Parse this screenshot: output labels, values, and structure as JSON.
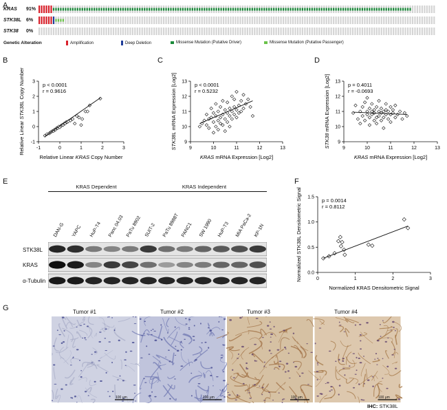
{
  "panels": {
    "A": "A",
    "B": "B",
    "C": "C",
    "D": "D",
    "E": "E",
    "F": "F",
    "G": "G"
  },
  "panel_a": {
    "genes": [
      {
        "name": "KRAS",
        "pct": "91%",
        "amp": 6,
        "del": 0,
        "driver": 150,
        "passenger": 0
      },
      {
        "name": "STK38L",
        "pct": "6%",
        "amp": 6,
        "del": 1,
        "driver": 0,
        "passenger": 4
      },
      {
        "name": "STK38",
        "pct": "0%",
        "amp": 0,
        "del": 0,
        "driver": 0,
        "passenger": 0
      }
    ],
    "legend_title": "Genetic Alteration",
    "legend": [
      {
        "label": "Amplification",
        "color": "#d9212b"
      },
      {
        "label": "Deep Deletion",
        "color": "#1f3d99"
      },
      {
        "label": "Missense Mutation (Putative Driver)",
        "color": "#1a8a3a"
      },
      {
        "label": "Missense Mutation (Putative Passenger)",
        "color": "#6ac24a"
      }
    ],
    "colors": {
      "unaltered": "#d4d4d4"
    }
  },
  "chart_data": [
    {
      "panel": "B",
      "type": "scatter",
      "ylabel_1": "Relative Linear ",
      "ylabel_italic": "STK38L",
      "ylabel_2": " Copy Number",
      "xlabel_1": "Relative Linear ",
      "xlabel_italic": "KRAS",
      "xlabel_2": " Copy Number",
      "xlim": [
        -1,
        3
      ],
      "ylim": [
        -1,
        3
      ],
      "xticks": [
        "-1",
        "0",
        "1",
        "2",
        "3"
      ],
      "yticks": [
        "-1",
        "0",
        "1",
        "2",
        "3"
      ],
      "stats": [
        "p < 0.0001",
        "r = 0.9616"
      ],
      "points": [
        [
          -0.7,
          -0.6
        ],
        [
          -0.6,
          -0.5
        ],
        [
          -0.5,
          -0.45
        ],
        [
          -0.45,
          -0.4
        ],
        [
          -0.4,
          -0.35
        ],
        [
          -0.35,
          -0.3
        ],
        [
          -0.3,
          -0.3
        ],
        [
          -0.25,
          -0.2
        ],
        [
          -0.2,
          -0.2
        ],
        [
          -0.15,
          -0.1
        ],
        [
          -0.1,
          -0.1
        ],
        [
          -0.05,
          0.0
        ],
        [
          0.0,
          -0.05
        ],
        [
          0.05,
          0.05
        ],
        [
          0.1,
          0.1
        ],
        [
          0.15,
          0.1
        ],
        [
          0.2,
          0.2
        ],
        [
          0.25,
          0.2
        ],
        [
          0.3,
          0.3
        ],
        [
          0.35,
          0.3
        ],
        [
          0.4,
          0.35
        ],
        [
          0.5,
          0.4
        ],
        [
          0.6,
          0.5
        ],
        [
          0.7,
          0.2
        ],
        [
          0.8,
          0.7
        ],
        [
          0.9,
          0.6
        ],
        [
          1.0,
          0.1
        ],
        [
          1.05,
          0.5
        ],
        [
          1.2,
          1.0
        ],
        [
          1.3,
          1.0
        ],
        [
          1.4,
          1.4
        ],
        [
          1.9,
          1.85
        ]
      ],
      "fit": [
        [
          -0.7,
          -0.65
        ],
        [
          1.9,
          1.9
        ]
      ]
    },
    {
      "panel": "C",
      "type": "scatter",
      "ylabel_italic": "STK38L",
      "ylabel_2": " mRNA Expression [Log2]",
      "xlabel_italic": "KRAS",
      "xlabel_2": " mRNA Expression [Log2]",
      "xlim": [
        9,
        13
      ],
      "ylim": [
        9,
        13
      ],
      "xticks": [
        "9",
        "10",
        "11",
        "12",
        "13"
      ],
      "yticks": [
        "9",
        "10",
        "11",
        "12",
        "13"
      ],
      "stats": [
        "p < 0.0001",
        "r = 0.5232"
      ],
      "points": [
        [
          9.4,
          10.0
        ],
        [
          9.5,
          10.2
        ],
        [
          9.6,
          10.4
        ],
        [
          9.7,
          10.1
        ],
        [
          9.7,
          10.8
        ],
        [
          9.8,
          10.5
        ],
        [
          9.8,
          9.9
        ],
        [
          9.9,
          10.6
        ],
        [
          9.9,
          11.2
        ],
        [
          10.0,
          10.3
        ],
        [
          10.0,
          10.9
        ],
        [
          10.0,
          9.6
        ],
        [
          10.1,
          10.7
        ],
        [
          10.1,
          11.5
        ],
        [
          10.1,
          10.0
        ],
        [
          10.2,
          10.4
        ],
        [
          10.2,
          11.0
        ],
        [
          10.2,
          9.8
        ],
        [
          10.3,
          10.6
        ],
        [
          10.3,
          11.3
        ],
        [
          10.3,
          10.2
        ],
        [
          10.4,
          10.8
        ],
        [
          10.4,
          10.1
        ],
        [
          10.4,
          11.7
        ],
        [
          10.5,
          10.5
        ],
        [
          10.5,
          11.1
        ],
        [
          10.5,
          9.7
        ],
        [
          10.6,
          10.9
        ],
        [
          10.6,
          10.3
        ],
        [
          10.6,
          11.6
        ],
        [
          10.7,
          10.7
        ],
        [
          10.7,
          11.2
        ],
        [
          10.7,
          10.0
        ],
        [
          10.8,
          11.0
        ],
        [
          10.8,
          10.5
        ],
        [
          10.8,
          12.0
        ],
        [
          10.9,
          11.3
        ],
        [
          10.9,
          10.8
        ],
        [
          10.9,
          11.8
        ],
        [
          11.0,
          11.1
        ],
        [
          11.0,
          10.6
        ],
        [
          11.0,
          12.3
        ],
        [
          11.1,
          11.4
        ],
        [
          11.1,
          10.9
        ],
        [
          11.2,
          11.7
        ],
        [
          11.2,
          11.0
        ],
        [
          11.3,
          12.1
        ],
        [
          11.3,
          11.2
        ],
        [
          11.4,
          11.5
        ],
        [
          11.5,
          11.8
        ],
        [
          11.6,
          11.3
        ],
        [
          11.7,
          10.7
        ]
      ],
      "fit": [
        [
          9.4,
          10.2
        ],
        [
          11.7,
          11.7
        ]
      ]
    },
    {
      "panel": "D",
      "type": "scatter",
      "ylabel_italic": "STK38",
      "ylabel_2": " mRNA Expression [Log2]",
      "xlabel_italic": "KRAS",
      "xlabel_2": " mRNA Expression [Log2]",
      "xlim": [
        9,
        13
      ],
      "ylim": [
        9,
        13
      ],
      "xticks": [
        "9",
        "10",
        "11",
        "12",
        "13"
      ],
      "yticks": [
        "9",
        "10",
        "11",
        "12",
        "13"
      ],
      "stats": [
        "p = 0.4011",
        "r = -0.0693"
      ],
      "points": [
        [
          9.4,
          10.9
        ],
        [
          9.5,
          11.4
        ],
        [
          9.6,
          10.5
        ],
        [
          9.7,
          11.0
        ],
        [
          9.7,
          10.2
        ],
        [
          9.8,
          11.3
        ],
        [
          9.8,
          10.7
        ],
        [
          9.9,
          11.6
        ],
        [
          9.9,
          10.4
        ],
        [
          10.0,
          11.0
        ],
        [
          10.0,
          10.8
        ],
        [
          10.0,
          11.9
        ],
        [
          10.1,
          10.6
        ],
        [
          10.1,
          11.2
        ],
        [
          10.1,
          10.1
        ],
        [
          10.2,
          11.0
        ],
        [
          10.2,
          10.8
        ],
        [
          10.2,
          11.5
        ],
        [
          10.3,
          10.4
        ],
        [
          10.3,
          11.1
        ],
        [
          10.3,
          10.9
        ],
        [
          10.4,
          11.3
        ],
        [
          10.4,
          10.6
        ],
        [
          10.4,
          10.2
        ],
        [
          10.5,
          11.0
        ],
        [
          10.5,
          10.7
        ],
        [
          10.5,
          11.7
        ],
        [
          10.6,
          10.9
        ],
        [
          10.6,
          10.4
        ],
        [
          10.6,
          11.2
        ],
        [
          10.7,
          11.0
        ],
        [
          10.7,
          10.6
        ],
        [
          10.7,
          9.9
        ],
        [
          10.8,
          11.1
        ],
        [
          10.8,
          10.8
        ],
        [
          10.8,
          11.5
        ],
        [
          10.9,
          10.5
        ],
        [
          10.9,
          11.0
        ],
        [
          11.0,
          10.8
        ],
        [
          11.0,
          11.3
        ],
        [
          11.0,
          10.3
        ],
        [
          11.1,
          10.9
        ],
        [
          11.1,
          11.1
        ],
        [
          11.2,
          10.6
        ],
        [
          11.2,
          11.4
        ],
        [
          11.3,
          10.8
        ],
        [
          11.4,
          11.0
        ],
        [
          11.5,
          10.5
        ],
        [
          11.6,
          10.9
        ],
        [
          11.7,
          10.7
        ]
      ],
      "fit": [
        [
          9.4,
          10.95
        ],
        [
          11.7,
          10.8
        ]
      ]
    },
    {
      "panel": "F",
      "type": "scatter",
      "ylabel": "Normalized STK38L Densitometric Signal",
      "xlabel": "Normalized KRAS Densitometric Signal",
      "xlim": [
        0,
        3
      ],
      "ylim": [
        0,
        1.5
      ],
      "xticks": [
        "0",
        "1",
        "2",
        "3"
      ],
      "yticks": [
        "0.0",
        "0.5",
        "1.0",
        "1.5"
      ],
      "stats": [
        "p = 0.0014",
        "r = 0.8112"
      ],
      "points": [
        [
          0.15,
          0.28
        ],
        [
          0.3,
          0.32
        ],
        [
          0.45,
          0.38
        ],
        [
          0.55,
          0.62
        ],
        [
          0.6,
          0.7
        ],
        [
          0.62,
          0.52
        ],
        [
          0.65,
          0.6
        ],
        [
          0.7,
          0.45
        ],
        [
          0.72,
          0.35
        ],
        [
          1.35,
          0.55
        ],
        [
          1.45,
          0.53
        ],
        [
          2.3,
          1.05
        ],
        [
          2.4,
          0.88
        ]
      ],
      "fit": [
        [
          0.15,
          0.28
        ],
        [
          2.4,
          0.92
        ]
      ]
    }
  ],
  "panel_e": {
    "group_dependent": "KRAS Dependent",
    "group_independent": "KRAS Independent",
    "lanes": [
      "DAN-G",
      "YAPC",
      "HuP-T4",
      "Panc 04.03",
      "PaTu 8902",
      "SUIT-2",
      "PaTu 8988T",
      "PANC1",
      "SW 1990",
      "HuP-T3",
      "MIA PaCa-2",
      "KP-1N"
    ],
    "rows": [
      {
        "label": "STK38L",
        "intensity": [
          0.9,
          0.85,
          0.5,
          0.45,
          0.5,
          0.8,
          0.55,
          0.5,
          0.6,
          0.65,
          0.7,
          0.8
        ]
      },
      {
        "label": "KRAS",
        "intensity": [
          1.0,
          0.95,
          0.45,
          0.8,
          0.75,
          0.55,
          0.35,
          0.45,
          0.5,
          0.6,
          0.6,
          0.7
        ]
      },
      {
        "label": "α-Tubulin",
        "intensity": [
          0.95,
          0.95,
          0.9,
          0.9,
          0.9,
          0.9,
          0.9,
          0.9,
          0.9,
          0.9,
          0.9,
          0.9
        ]
      }
    ]
  },
  "panel_g": {
    "tumors": [
      {
        "label": "Tumor #1",
        "scale": "100 μm",
        "stain": "#cfd2e2",
        "tint": "#a8acc8"
      },
      {
        "label": "Tumor #2",
        "scale": "100 μm",
        "stain": "#c0c4dc",
        "tint": "#6d76b0"
      },
      {
        "label": "Tumor #3",
        "scale": "100 μm",
        "stain": "#d6c1a3",
        "tint": "#9c6b3e"
      },
      {
        "label": "Tumor #4",
        "scale": "100 μm",
        "stain": "#ddc8ae",
        "tint": "#a0703f"
      }
    ],
    "ihc_label": "IHC:",
    "ihc_marker": "STK38L"
  }
}
